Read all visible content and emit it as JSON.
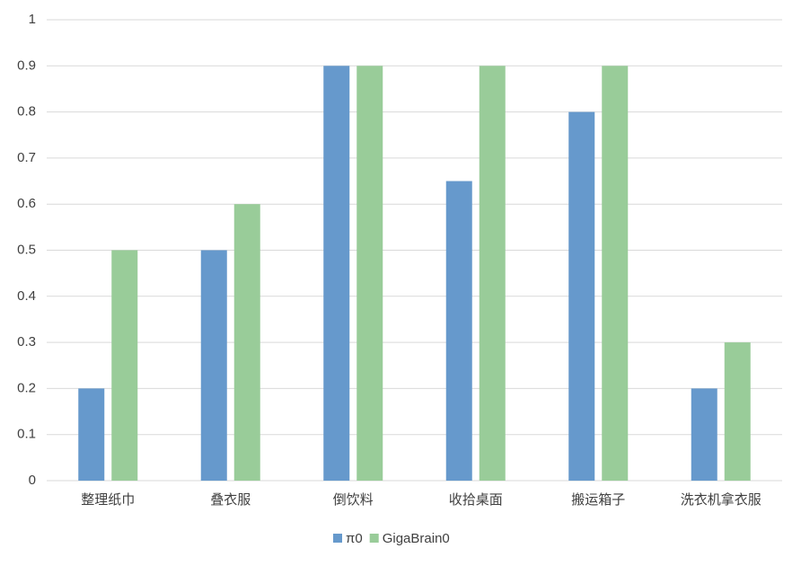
{
  "chart_data": {
    "type": "bar",
    "categories": [
      "整理纸巾",
      "叠衣服",
      "倒饮料",
      "收拾桌面",
      "搬运箱子",
      "洗衣机拿衣服"
    ],
    "series": [
      {
        "name": "π0",
        "color": "#6699cc",
        "values": [
          0.2,
          0.5,
          0.9,
          0.65,
          0.8,
          0.2
        ]
      },
      {
        "name": "GigaBrain0",
        "color": "#99cc99",
        "values": [
          0.5,
          0.6,
          0.9,
          0.9,
          0.9,
          0.3
        ]
      }
    ],
    "ylim": [
      0,
      1
    ],
    "yticks": [
      0,
      0.1,
      0.2,
      0.3,
      0.4,
      0.5,
      0.6,
      0.7,
      0.8,
      0.9,
      1
    ],
    "grid": true,
    "legend": "bottom"
  }
}
